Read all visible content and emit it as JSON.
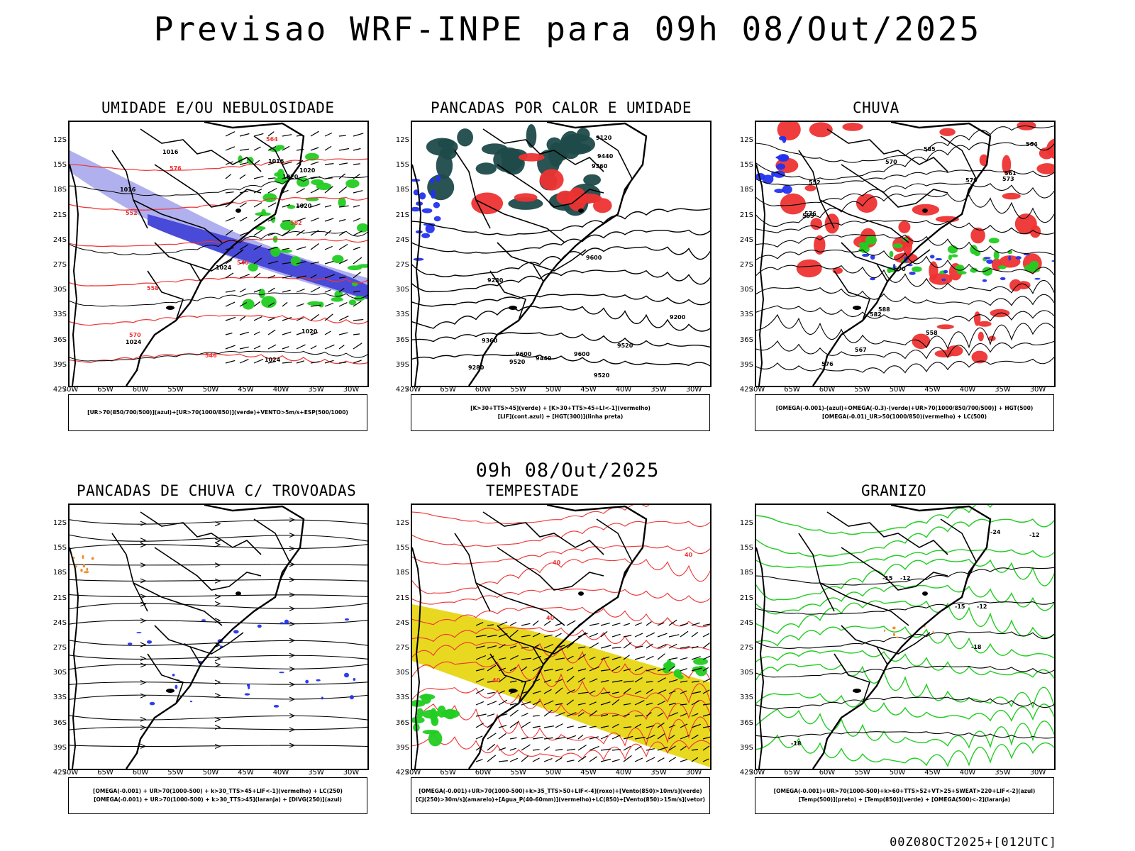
{
  "title": "Previsao WRF-INPE  para 09h 08/Out/2025",
  "subtitle": "09h 08/Out/2025",
  "footer": "00Z08OCT2025+[012UTC]",
  "lat_labels": [
    "12S",
    "15S",
    "18S",
    "21S",
    "24S",
    "27S",
    "30S",
    "33S",
    "36S",
    "39S",
    "42S"
  ],
  "lon_labels": [
    "70W",
    "65W",
    "60W",
    "55W",
    "50W",
    "45W",
    "40W",
    "35W",
    "30W"
  ],
  "colors": {
    "blue": "#2233ee",
    "green": "#22cc22",
    "red": "#ee3333",
    "orange": "#ee8822",
    "yellow": "#e8d820",
    "darkteal": "#1f4a4a",
    "lavender": "#b0b0ee"
  },
  "panels": [
    {
      "title": "UMIDADE E/OU NEBULOSIDADE",
      "legend": [
        "[UR>70(850/700/500)](azul)+[UR>70(1000/850)](verde)+VENTO>5m/s+ESP(500/1000)"
      ],
      "contour_labels": [
        "1016",
        "1020",
        "1024",
        "1016",
        "1020",
        "1024",
        "1020",
        "1024",
        "1016",
        "1020",
        "570",
        "564",
        "558",
        "552",
        "546",
        "540",
        "582",
        "576"
      ]
    },
    {
      "title": "PANCADAS POR CALOR E UMIDADE",
      "legend": [
        "[K>30+TTS>45](verde) + [K>30+TTS>45+LI<-1](vermelho)",
        "[LIF](cont.azul) + [HGT(300)](linha preta)"
      ],
      "contour_labels": [
        "9600",
        "9600",
        "9520",
        "9440",
        "9360",
        "9520",
        "9440",
        "9360",
        "9280",
        "9200",
        "9120",
        "9280",
        "9600",
        "9520"
      ]
    },
    {
      "title": "CHUVA",
      "legend": [
        "[OMEGA(-0.001)-(azul)+OMEGA(-0.3)-(verde)+UR>70(1000/850/700/500)] + HGT(500)",
        "[OMEGA(-0.01)_UR>50(1000/850)(vermelho) + LC(500)"
      ],
      "contour_labels": [
        "582",
        "588",
        "585",
        "576",
        "570",
        "567",
        "564",
        "561",
        "558",
        "555",
        "552",
        "579",
        "573",
        "570",
        "576"
      ]
    },
    {
      "title": "PANCADAS DE CHUVA C/ TROVOADAS",
      "legend": [
        "[OMEGA(-0.001) + UR>70(1000-500) + k>30_TTS>45+LIF<-1](vermelho) + LC(250)",
        "[OMEGA(-0.001) + UR>70(1000-500) + k>30_TTS>45](laranja) + [DIVG(250)](azul)"
      ],
      "contour_labels": []
    },
    {
      "title": "TEMPESTADE",
      "legend": [
        "[OMEGA(-0.001)+UR>70(1000-500)+k>35_TTS>50+LIF<-4](roxo)+[Vento(850)>10m/s](verde)",
        "[CJ(250)>30m/s](amarelo)+[Agua_P(40-60mm)](vermelho)+LC(850)+[Vento(850)>15m/s](vetor)"
      ],
      "contour_labels": [
        "40",
        "40",
        "40",
        "40"
      ]
    },
    {
      "title": "GRANIZO",
      "legend": [
        "[OMEGA(-0.001)+UR>70(1000-500)+k>60+TTS>52+VT>25+SWEAT>220+LIF<-2](azul)",
        "[Temp(500)](preto) + [Temp(850)](verde) + [OMEGA(500)<-2](laranja)"
      ],
      "contour_labels": [
        "-12",
        "-12",
        "-15",
        "-18",
        "-24",
        "-18",
        "-15",
        "-12"
      ]
    }
  ]
}
